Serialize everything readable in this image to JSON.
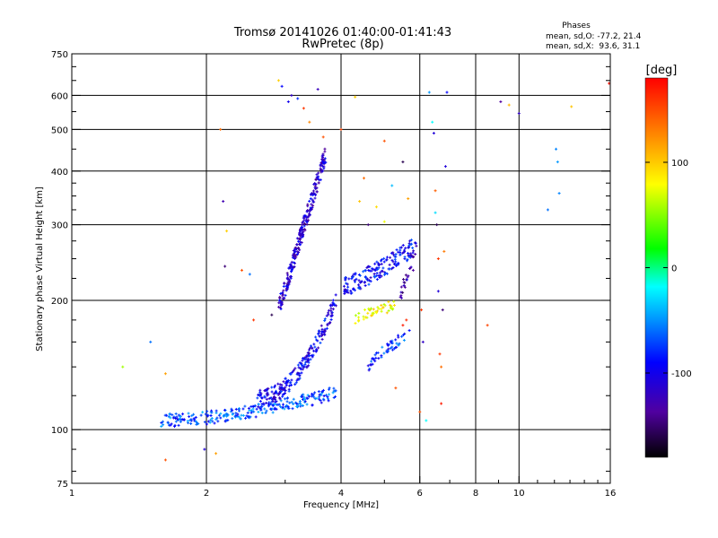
{
  "chart_data": {
    "type": "scatter",
    "title": "Tromsø 20141026 01:40:00-01:41:43",
    "subtitle": "RwPretec (8p)",
    "xlabel": "Frequency [MHz]",
    "ylabel": "Stationary phase Virtual Height [km]",
    "x_scale": "log",
    "y_scale": "log",
    "xlim": [
      1,
      16
    ],
    "ylim": [
      75,
      750
    ],
    "grid": true,
    "x_ticks": [
      1,
      2,
      4,
      6,
      8,
      10,
      16
    ],
    "x_tick_labels": [
      "1",
      "2",
      "4",
      "6",
      "8",
      "10",
      "16"
    ],
    "x_grid": [
      2,
      4,
      6,
      8,
      10
    ],
    "y_ticks": [
      75,
      100,
      200,
      300,
      400,
      500,
      600,
      750
    ],
    "y_tick_labels": [
      "75",
      "100",
      "200",
      "300",
      "400",
      "500",
      "600",
      "750"
    ],
    "y_grid": [
      100,
      200,
      300,
      400,
      500,
      600
    ],
    "stats": {
      "heading": "Phases",
      "line_o": "mean, sd,O: -77.2, 21.4",
      "line_x": "mean, sd,X:  93.6, 31.1"
    },
    "colorbar": {
      "label": "[deg]",
      "range": [
        -180,
        180
      ],
      "ticks": [
        100,
        0,
        -100
      ],
      "tick_labels": [
        "100",
        "0",
        "-100"
      ]
    },
    "traces": [
      {
        "fmin": 1.58,
        "fmax": 3.9,
        "hstart": 105,
        "hend": 122,
        "k": 1.7,
        "phase": -70,
        "n": 260,
        "spread": 0.035
      },
      {
        "fmin": 2.6,
        "fmax": 3.9,
        "hstart": 118,
        "hend": 200,
        "k": 2.0,
        "phase": -100,
        "n": 230,
        "spread": 0.045
      },
      {
        "fmin": 2.9,
        "fmax": 3.7,
        "hstart": 190,
        "hend": 440,
        "k": 1.0,
        "phase": -115,
        "n": 260,
        "spread": 0.05
      },
      {
        "fmin": 4.05,
        "fmax": 5.8,
        "hstart": 215,
        "hend": 265,
        "k": 1.2,
        "phase": -95,
        "n": 170,
        "spread": 0.05
      },
      {
        "fmin": 4.3,
        "fmax": 5.3,
        "hstart": 182,
        "hend": 195,
        "k": 1.0,
        "phase": 80,
        "n": 45,
        "spread": 0.03
      },
      {
        "fmin": 4.6,
        "fmax": 5.7,
        "hstart": 140,
        "hend": 168,
        "k": 0.8,
        "phase": -80,
        "n": 50,
        "spread": 0.03
      },
      {
        "fmin": 5.4,
        "fmax": 5.95,
        "hstart": 200,
        "hend": 280,
        "k": 1.0,
        "phase": -125,
        "n": 30,
        "spread": 0.04
      }
    ],
    "points": [
      {
        "x": 1.3,
        "y": 140,
        "phase": 50
      },
      {
        "x": 1.5,
        "y": 160,
        "phase": -60
      },
      {
        "x": 1.62,
        "y": 135,
        "phase": 120
      },
      {
        "x": 1.62,
        "y": 85,
        "phase": 150
      },
      {
        "x": 1.98,
        "y": 90,
        "phase": -110
      },
      {
        "x": 2.1,
        "y": 88,
        "phase": 120
      },
      {
        "x": 2.15,
        "y": 500,
        "phase": 140
      },
      {
        "x": 2.18,
        "y": 340,
        "phase": -130
      },
      {
        "x": 2.22,
        "y": 290,
        "phase": 100
      },
      {
        "x": 2.2,
        "y": 240,
        "phase": -150
      },
      {
        "x": 2.4,
        "y": 235,
        "phase": 150
      },
      {
        "x": 2.5,
        "y": 230,
        "phase": -60
      },
      {
        "x": 2.55,
        "y": 180,
        "phase": 160
      },
      {
        "x": 2.8,
        "y": 185,
        "phase": -160
      },
      {
        "x": 2.9,
        "y": 650,
        "phase": 100
      },
      {
        "x": 2.95,
        "y": 630,
        "phase": -90
      },
      {
        "x": 3.05,
        "y": 580,
        "phase": -100
      },
      {
        "x": 3.1,
        "y": 600,
        "phase": -120
      },
      {
        "x": 3.2,
        "y": 590,
        "phase": -80
      },
      {
        "x": 3.3,
        "y": 560,
        "phase": 160
      },
      {
        "x": 3.4,
        "y": 520,
        "phase": 130
      },
      {
        "x": 3.65,
        "y": 480,
        "phase": 150
      },
      {
        "x": 3.55,
        "y": 620,
        "phase": -125
      },
      {
        "x": 4.0,
        "y": 500,
        "phase": 155
      },
      {
        "x": 4.3,
        "y": 595,
        "phase": 100
      },
      {
        "x": 4.6,
        "y": 300,
        "phase": -150
      },
      {
        "x": 4.4,
        "y": 340,
        "phase": 105
      },
      {
        "x": 4.5,
        "y": 385,
        "phase": 140
      },
      {
        "x": 4.8,
        "y": 330,
        "phase": 95
      },
      {
        "x": 5.0,
        "y": 305,
        "phase": 75
      },
      {
        "x": 5.0,
        "y": 470,
        "phase": 150
      },
      {
        "x": 5.2,
        "y": 370,
        "phase": -40
      },
      {
        "x": 5.3,
        "y": 125,
        "phase": 150
      },
      {
        "x": 5.5,
        "y": 175,
        "phase": 170
      },
      {
        "x": 5.6,
        "y": 180,
        "phase": 165
      },
      {
        "x": 5.5,
        "y": 420,
        "phase": -160
      },
      {
        "x": 5.65,
        "y": 345,
        "phase": 120
      },
      {
        "x": 5.8,
        "y": 235,
        "phase": -140
      },
      {
        "x": 6.0,
        "y": 110,
        "phase": 150
      },
      {
        "x": 6.05,
        "y": 190,
        "phase": 160
      },
      {
        "x": 6.1,
        "y": 160,
        "phase": -120
      },
      {
        "x": 6.2,
        "y": 105,
        "phase": -20
      },
      {
        "x": 6.3,
        "y": 610,
        "phase": -50
      },
      {
        "x": 6.4,
        "y": 520,
        "phase": -20
      },
      {
        "x": 6.45,
        "y": 490,
        "phase": -110
      },
      {
        "x": 6.5,
        "y": 360,
        "phase": 145
      },
      {
        "x": 6.5,
        "y": 320,
        "phase": -30
      },
      {
        "x": 6.55,
        "y": 300,
        "phase": -160
      },
      {
        "x": 6.6,
        "y": 250,
        "phase": 160
      },
      {
        "x": 6.6,
        "y": 210,
        "phase": -110
      },
      {
        "x": 6.65,
        "y": 150,
        "phase": 160
      },
      {
        "x": 6.7,
        "y": 140,
        "phase": 140
      },
      {
        "x": 6.7,
        "y": 115,
        "phase": 170
      },
      {
        "x": 6.75,
        "y": 190,
        "phase": -150
      },
      {
        "x": 6.8,
        "y": 260,
        "phase": 135
      },
      {
        "x": 6.85,
        "y": 410,
        "phase": -110
      },
      {
        "x": 6.9,
        "y": 610,
        "phase": -90
      },
      {
        "x": 8.5,
        "y": 175,
        "phase": 155
      },
      {
        "x": 9.1,
        "y": 580,
        "phase": -140
      },
      {
        "x": 9.5,
        "y": 570,
        "phase": 110
      },
      {
        "x": 10.0,
        "y": 545,
        "phase": -120
      },
      {
        "x": 11.6,
        "y": 325,
        "phase": -60
      },
      {
        "x": 12.1,
        "y": 450,
        "phase": -55
      },
      {
        "x": 12.2,
        "y": 420,
        "phase": -50
      },
      {
        "x": 12.3,
        "y": 355,
        "phase": -55
      },
      {
        "x": 13.1,
        "y": 565,
        "phase": 105
      },
      {
        "x": 15.9,
        "y": 640,
        "phase": 175
      }
    ]
  }
}
